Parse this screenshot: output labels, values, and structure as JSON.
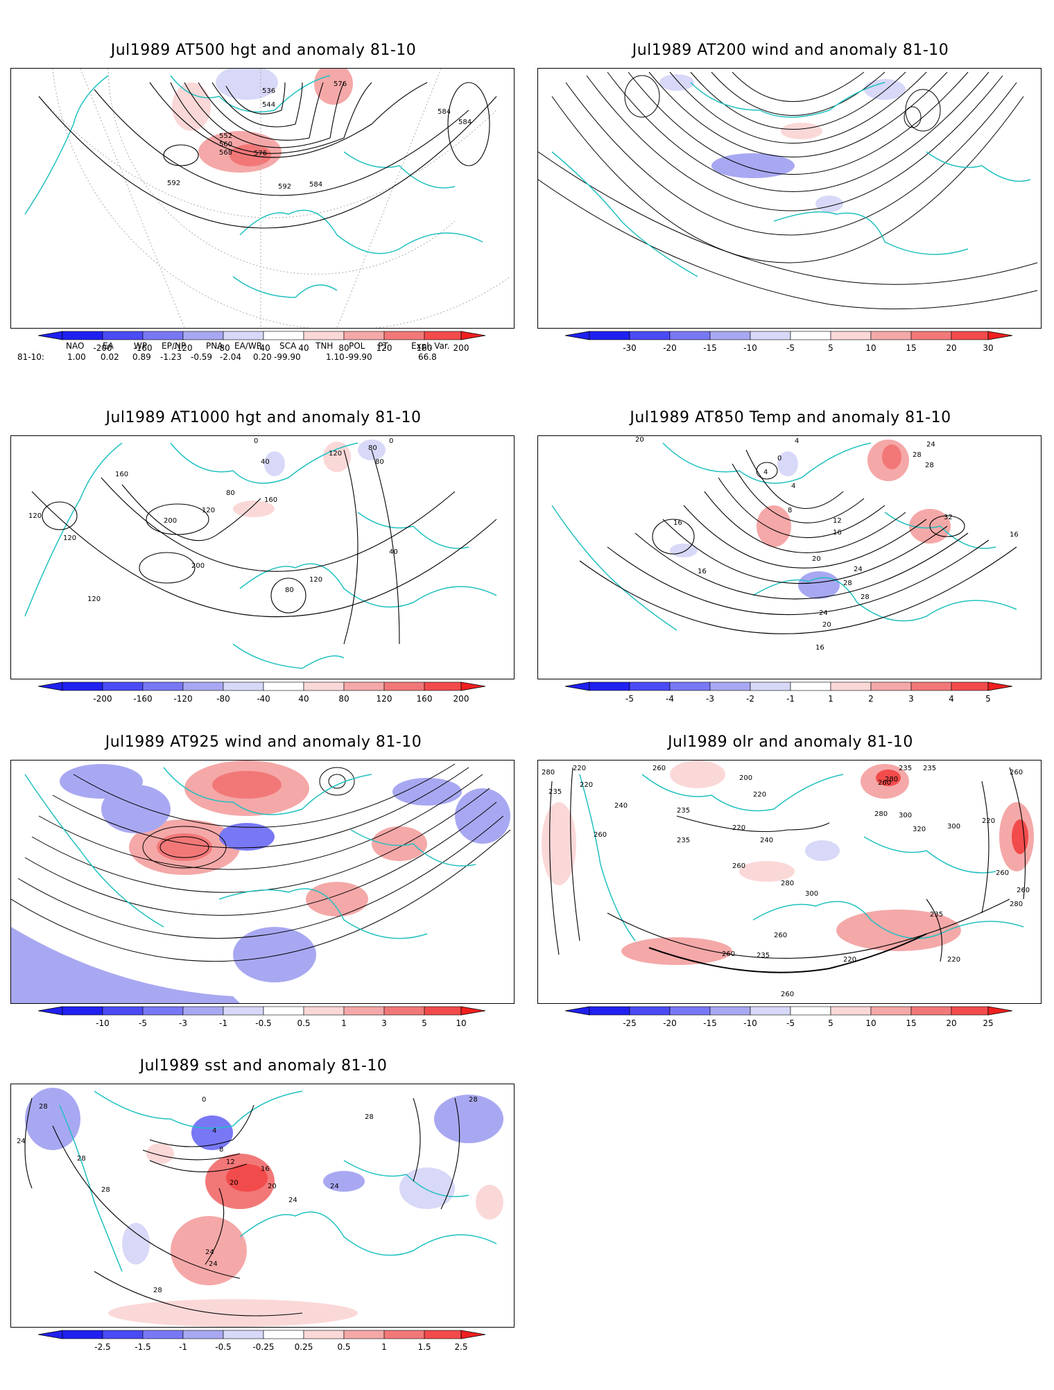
{
  "panels": [
    {
      "id": "p1",
      "title": "Jul1989 AT500 hgt and anomaly 81-10",
      "colorbar": {
        "ticks": [
          "-200",
          "-160",
          "-120",
          "-80",
          "-40",
          "40",
          "80",
          "120",
          "160",
          "200"
        ]
      },
      "contour_labels": [
        "536",
        "544",
        "552",
        "560",
        "568",
        "576",
        "576",
        "584",
        "584",
        "584",
        "592",
        "592"
      ]
    },
    {
      "id": "p2",
      "title": "Jul1989 AT200 wind and anomaly 81-10",
      "colorbar": {
        "ticks": [
          "-30",
          "-20",
          "-15",
          "-10",
          "-5",
          "5",
          "10",
          "15",
          "20",
          "30"
        ]
      },
      "contour_labels": []
    },
    {
      "id": "p3",
      "title": "Jul1989 AT1000 hgt and anomaly 81-10",
      "colorbar": {
        "ticks": [
          "-200",
          "-160",
          "-120",
          "-80",
          "-40",
          "40",
          "80",
          "120",
          "160",
          "200"
        ]
      },
      "contour_labels": [
        "0",
        "40",
        "80",
        "80",
        "80",
        "120",
        "120",
        "120",
        "120",
        "120",
        "160",
        "160",
        "200",
        "200",
        "0",
        "40",
        "80",
        "120"
      ]
    },
    {
      "id": "p4",
      "title": "Jul1989 AT850 Temp and anomaly 81-10",
      "colorbar": {
        "ticks": [
          "-5",
          "-4",
          "-3",
          "-2",
          "-1",
          "1",
          "2",
          "3",
          "4",
          "5"
        ]
      },
      "contour_labels": [
        "20",
        "4",
        "0",
        "4",
        "4",
        "8",
        "12",
        "16",
        "16",
        "16",
        "20",
        "24",
        "28",
        "28",
        "24",
        "20",
        "16",
        "28",
        "24",
        "32",
        "16",
        "28"
      ]
    },
    {
      "id": "p5",
      "title": "Jul1989 AT925 wind and anomaly 81-10",
      "colorbar": {
        "ticks": [
          "-10",
          "-5",
          "-3",
          "-1",
          "-0.5",
          "0.5",
          "1",
          "3",
          "5",
          "10"
        ]
      },
      "contour_labels": []
    },
    {
      "id": "p6",
      "title": "Jul1989 olr and anomaly 81-10",
      "colorbar": {
        "ticks": [
          "-25",
          "-20",
          "-15",
          "-10",
          "-5",
          "5",
          "10",
          "15",
          "20",
          "25"
        ]
      },
      "contour_labels": [
        "280",
        "220",
        "220",
        "235",
        "260",
        "260",
        "240",
        "235",
        "200",
        "220",
        "220",
        "235",
        "240",
        "260",
        "280",
        "300",
        "260",
        "280",
        "300",
        "320",
        "300",
        "220",
        "260",
        "235",
        "235",
        "280",
        "260",
        "260",
        "280",
        "235",
        "220",
        "260",
        "235",
        "260",
        "260",
        "220"
      ]
    },
    {
      "id": "p7",
      "title": "Jul1989 sst and anomaly 81-10",
      "colorbar": {
        "ticks": [
          "-2.5",
          "-1.5",
          "-1",
          "-0.5",
          "-0.25",
          "0.25",
          "0.5",
          "1",
          "1.5",
          "2.5"
        ]
      },
      "contour_labels": [
        "28",
        "24",
        "28",
        "28",
        "24",
        "20",
        "16",
        "12",
        "8",
        "4",
        "0",
        "20",
        "24",
        "24",
        "28",
        "28",
        "28",
        "24"
      ]
    }
  ],
  "index_table": {
    "headers": [
      "NAO",
      "EA",
      "WP",
      "EP/NP",
      "PNA",
      "EA/WR",
      "SCA",
      "TNH",
      "POL",
      "PT",
      "Expl. Var."
    ],
    "row_label": "81-10:",
    "values": [
      "1.00",
      "0.02",
      "0.89",
      "-1.23",
      "-0.59",
      "-2.04",
      "0.20",
      "-99.90",
      "1.10",
      "-99.90",
      "66.8"
    ]
  },
  "colors": {
    "blues": [
      "#2020f0",
      "#4b4bf5",
      "#7878f5",
      "#a8a8f2",
      "#d8d8f8"
    ],
    "reds": [
      "#fbd8d8",
      "#f5a8a8",
      "#f27878",
      "#f24b4b",
      "#f02020"
    ],
    "coast": "#20c0c0",
    "contour": "#000000"
  }
}
